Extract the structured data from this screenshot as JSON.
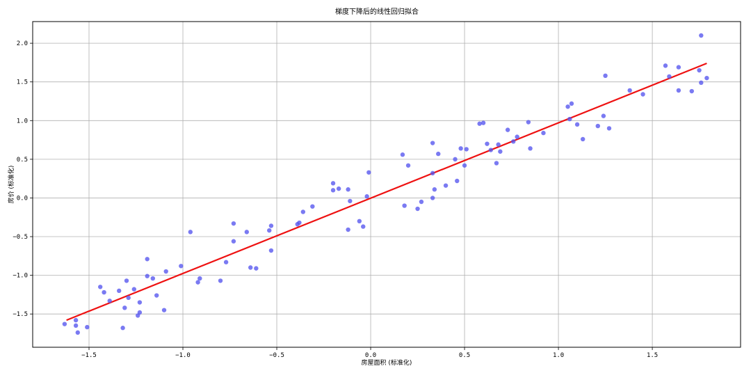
{
  "chart_data": {
    "type": "scatter",
    "title": "梯度下降后的线性回归拟合",
    "xlabel": "房屋面积 (标准化)",
    "ylabel": "房价 (标准化)",
    "xlim": [
      -1.8,
      1.97
    ],
    "ylim": [
      -1.93,
      2.28
    ],
    "xticks": [
      -1.5,
      -1.0,
      -0.5,
      0.0,
      0.5,
      1.0,
      1.5
    ],
    "yticks": [
      -1.5,
      -1.0,
      -0.5,
      0.0,
      0.5,
      1.0,
      1.5,
      2.0
    ],
    "xtick_labels": [
      "−1.5",
      "−1.0",
      "−0.5",
      "0.0",
      "0.5",
      "1.0",
      "1.5"
    ],
    "ytick_labels": [
      "−1.5",
      "−1.0",
      "−0.5",
      "0.0",
      "0.5",
      "1.0",
      "1.5",
      "2.0"
    ],
    "grid": true,
    "colors": {
      "points": "#5555ee",
      "line": "#ee1111",
      "grid": "#b0b0b0"
    },
    "points": [
      [
        -1.63,
        -1.63
      ],
      [
        -1.57,
        -1.58
      ],
      [
        -1.57,
        -1.65
      ],
      [
        -1.56,
        -1.74
      ],
      [
        -1.51,
        -1.67
      ],
      [
        -1.44,
        -1.15
      ],
      [
        -1.42,
        -1.22
      ],
      [
        -1.39,
        -1.33
      ],
      [
        -1.34,
        -1.2
      ],
      [
        -1.32,
        -1.68
      ],
      [
        -1.31,
        -1.42
      ],
      [
        -1.3,
        -1.07
      ],
      [
        -1.29,
        -1.29
      ],
      [
        -1.26,
        -1.18
      ],
      [
        -1.24,
        -1.52
      ],
      [
        -1.23,
        -1.48
      ],
      [
        -1.23,
        -1.35
      ],
      [
        -1.19,
        -0.79
      ],
      [
        -1.19,
        -1.01
      ],
      [
        -1.16,
        -1.04
      ],
      [
        -1.14,
        -1.26
      ],
      [
        -1.1,
        -1.45
      ],
      [
        -1.09,
        -0.95
      ],
      [
        -1.01,
        -0.88
      ],
      [
        -0.96,
        -0.44
      ],
      [
        -0.92,
        -1.09
      ],
      [
        -0.91,
        -1.04
      ],
      [
        -0.8,
        -1.07
      ],
      [
        -0.77,
        -0.83
      ],
      [
        -0.73,
        -0.33
      ],
      [
        -0.73,
        -0.56
      ],
      [
        -0.66,
        -0.44
      ],
      [
        -0.64,
        -0.9
      ],
      [
        -0.61,
        -0.91
      ],
      [
        -0.54,
        -0.42
      ],
      [
        -0.53,
        -0.36
      ],
      [
        -0.53,
        -0.68
      ],
      [
        -0.39,
        -0.34
      ],
      [
        -0.38,
        -0.32
      ],
      [
        -0.36,
        -0.18
      ],
      [
        -0.31,
        -0.11
      ],
      [
        -0.2,
        0.1
      ],
      [
        -0.2,
        0.19
      ],
      [
        -0.17,
        0.12
      ],
      [
        -0.12,
        0.11
      ],
      [
        -0.12,
        -0.41
      ],
      [
        -0.11,
        -0.04
      ],
      [
        -0.06,
        -0.3
      ],
      [
        -0.04,
        -0.37
      ],
      [
        -0.02,
        0.02
      ],
      [
        -0.01,
        0.33
      ],
      [
        0.17,
        0.56
      ],
      [
        0.18,
        -0.1
      ],
      [
        0.2,
        0.42
      ],
      [
        0.25,
        -0.14
      ],
      [
        0.27,
        -0.05
      ],
      [
        0.33,
        0.0
      ],
      [
        0.33,
        0.32
      ],
      [
        0.33,
        0.71
      ],
      [
        0.34,
        0.11
      ],
      [
        0.36,
        0.57
      ],
      [
        0.4,
        0.16
      ],
      [
        0.45,
        0.5
      ],
      [
        0.46,
        0.22
      ],
      [
        0.48,
        0.64
      ],
      [
        0.5,
        0.42
      ],
      [
        0.51,
        0.63
      ],
      [
        0.58,
        0.96
      ],
      [
        0.6,
        0.97
      ],
      [
        0.62,
        0.7
      ],
      [
        0.64,
        0.62
      ],
      [
        0.67,
        0.45
      ],
      [
        0.68,
        0.69
      ],
      [
        0.69,
        0.6
      ],
      [
        0.73,
        0.88
      ],
      [
        0.76,
        0.73
      ],
      [
        0.78,
        0.79
      ],
      [
        0.84,
        0.98
      ],
      [
        0.85,
        0.64
      ],
      [
        0.92,
        0.84
      ],
      [
        1.05,
        1.18
      ],
      [
        1.06,
        1.02
      ],
      [
        1.07,
        1.22
      ],
      [
        1.1,
        0.95
      ],
      [
        1.13,
        0.76
      ],
      [
        1.21,
        0.93
      ],
      [
        1.24,
        1.06
      ],
      [
        1.25,
        1.58
      ],
      [
        1.27,
        0.9
      ],
      [
        1.38,
        1.39
      ],
      [
        1.45,
        1.34
      ],
      [
        1.57,
        1.71
      ],
      [
        1.59,
        1.57
      ],
      [
        1.64,
        1.69
      ],
      [
        1.64,
        1.39
      ],
      [
        1.71,
        1.38
      ],
      [
        1.75,
        1.65
      ],
      [
        1.76,
        2.1
      ],
      [
        1.76,
        1.49
      ],
      [
        1.79,
        1.55
      ]
    ],
    "fit_line": {
      "x": [
        -1.62,
        1.79
      ],
      "y": [
        -1.58,
        1.74
      ]
    }
  }
}
